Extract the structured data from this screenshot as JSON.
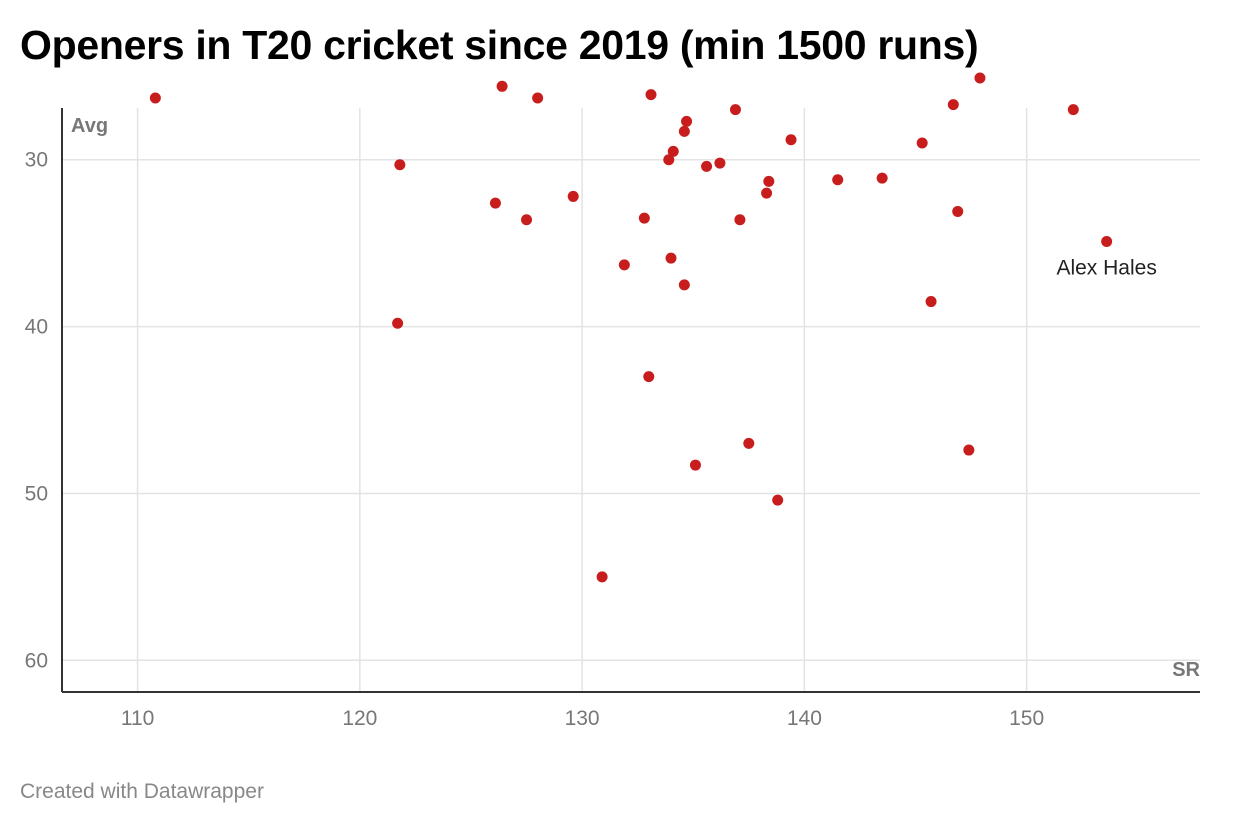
{
  "chart_data": {
    "type": "scatter",
    "title": "Openers in T20 cricket since 2019 (min 1500 runs)",
    "xlabel": "SR",
    "ylabel": "Avg",
    "xlim": [
      106.6,
      157.8
    ],
    "ylim": [
      26.9,
      61.9
    ],
    "y_inverted": true,
    "x_ticks": [
      110,
      120,
      130,
      140,
      150
    ],
    "y_ticks": [
      30,
      40,
      50,
      60
    ],
    "grid": true,
    "point_color": "#c71e1d",
    "points": [
      {
        "x": 110.8,
        "y": 26.3
      },
      {
        "x": 121.8,
        "y": 30.3
      },
      {
        "x": 121.7,
        "y": 39.8
      },
      {
        "x": 126.4,
        "y": 25.6
      },
      {
        "x": 126.1,
        "y": 32.6
      },
      {
        "x": 127.5,
        "y": 33.6
      },
      {
        "x": 128.0,
        "y": 26.3
      },
      {
        "x": 129.6,
        "y": 32.2
      },
      {
        "x": 130.9,
        "y": 55.0
      },
      {
        "x": 131.9,
        "y": 36.3
      },
      {
        "x": 132.8,
        "y": 33.5
      },
      {
        "x": 133.0,
        "y": 43.0
      },
      {
        "x": 133.1,
        "y": 26.1
      },
      {
        "x": 133.9,
        "y": 30.0
      },
      {
        "x": 134.0,
        "y": 35.9
      },
      {
        "x": 134.1,
        "y": 29.5
      },
      {
        "x": 134.6,
        "y": 28.3
      },
      {
        "x": 134.6,
        "y": 37.5
      },
      {
        "x": 134.7,
        "y": 27.7
      },
      {
        "x": 135.1,
        "y": 48.3
      },
      {
        "x": 135.6,
        "y": 30.4
      },
      {
        "x": 136.2,
        "y": 30.2
      },
      {
        "x": 136.9,
        "y": 27.0
      },
      {
        "x": 137.1,
        "y": 33.6
      },
      {
        "x": 137.5,
        "y": 47.0
      },
      {
        "x": 138.3,
        "y": 32.0
      },
      {
        "x": 138.4,
        "y": 31.3
      },
      {
        "x": 138.8,
        "y": 50.4
      },
      {
        "x": 139.4,
        "y": 28.8
      },
      {
        "x": 141.5,
        "y": 31.2
      },
      {
        "x": 143.5,
        "y": 31.1
      },
      {
        "x": 145.3,
        "y": 29.0
      },
      {
        "x": 145.7,
        "y": 38.5
      },
      {
        "x": 146.7,
        "y": 26.7
      },
      {
        "x": 146.9,
        "y": 33.1
      },
      {
        "x": 147.4,
        "y": 47.4
      },
      {
        "x": 147.9,
        "y": 25.1
      },
      {
        "x": 152.1,
        "y": 27.0
      },
      {
        "x": 153.6,
        "y": 34.9,
        "label": "Alex Hales"
      }
    ]
  },
  "footer": "Created with Datawrapper"
}
